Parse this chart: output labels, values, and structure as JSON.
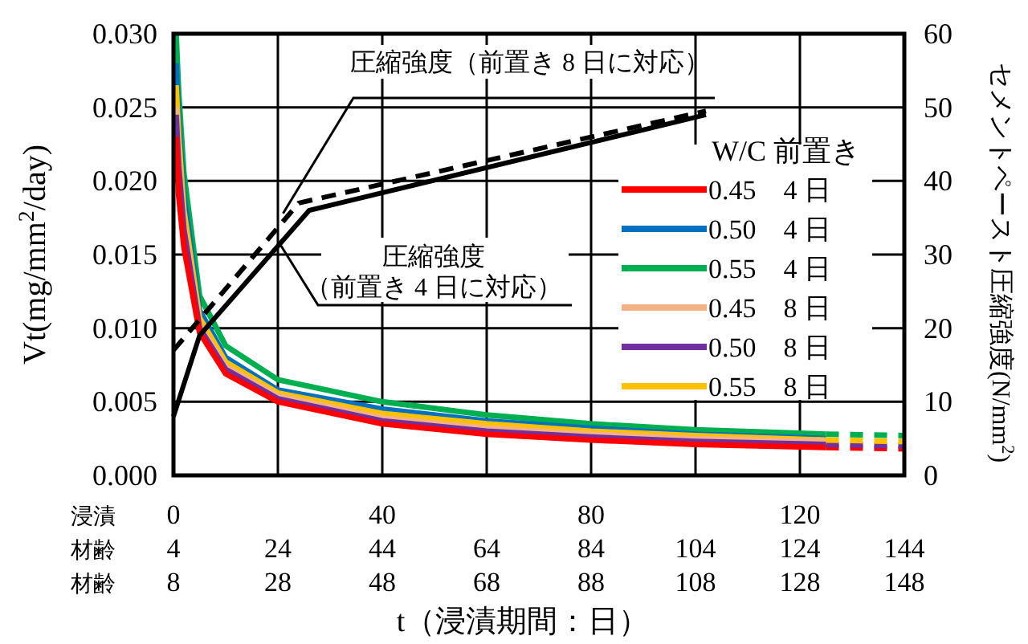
{
  "chart_data": {
    "type": "line",
    "xlabel": "t（浸漬期間：日）",
    "ylabel": "Vt(mg/mm$^{2}$/day)",
    "y2label": "セメントペースト圧縮強度(N/mm$^{2}$)",
    "x2label": "材齢",
    "legend_title": "W/C 前置き",
    "legend": "right",
    "grid": true,
    "xlim": [
      0,
      140
    ],
    "xticks": [
      0,
      40,
      80,
      120
    ],
    "x2lim": [
      4,
      144
    ],
    "x2ticks": [
      4,
      24,
      44,
      64,
      84,
      104,
      124,
      144
    ],
    "ylim": [
      0,
      0.03
    ],
    "yticks": [
      {
        "value": 0,
        "label": "0.000"
      },
      {
        "value": 0.005,
        "label": "0.005"
      },
      {
        "value": 0.01,
        "label": "0.010"
      },
      {
        "value": 0.015,
        "label": "0.015"
      },
      {
        "value": 0.02,
        "label": "0.020"
      },
      {
        "value": 0.025,
        "label": "0.025"
      },
      {
        "value": 0.03,
        "label": "0.030"
      }
    ],
    "y2lim": [
      0,
      60
    ],
    "y2ticks": [
      0,
      10,
      20,
      30,
      40,
      50,
      60
    ],
    "annotations": [
      {
        "text": "圧縮強度（前置き 8 日に対応）",
        "x": 21,
        "y": 0.0178
      },
      {
        "text": "圧縮強度（前置き 4 日に対応）",
        "x": 20.6,
        "y": 0.0156
      },
      "浸漬",
      "材齢",
      "8",
      "28",
      "48",
      "68",
      "88",
      "108",
      "128",
      "148"
    ],
    "series": [
      {
        "name": "0.45　4 日",
        "color": "#ff0000",
        "x": [
          0.5,
          1,
          2,
          5,
          10,
          20,
          40,
          60,
          80,
          100,
          125
        ],
        "values": [
          0.023,
          0.019,
          0.0155,
          0.0097,
          0.0069,
          0.005,
          0.0035,
          0.0028,
          0.0024,
          0.0021,
          0.0019
        ]
      },
      {
        "name": "0.50　4 日",
        "color": "#0070c0",
        "x": [
          0.5,
          1,
          2,
          5,
          10,
          20,
          40,
          60,
          80,
          100,
          125
        ],
        "values": [
          0.028,
          0.024,
          0.019,
          0.0112,
          0.008,
          0.0058,
          0.0045,
          0.0037,
          0.0032,
          0.0028,
          0.0025
        ]
      },
      {
        "name": "0.55　4 日",
        "color": "#00b050",
        "x": [
          0.5,
          1,
          2,
          5,
          10,
          20,
          40,
          60,
          80,
          100,
          125
        ],
        "values": [
          0.03,
          0.026,
          0.0205,
          0.0122,
          0.0088,
          0.0065,
          0.005,
          0.0041,
          0.0035,
          0.0031,
          0.0028
        ]
      },
      {
        "name": "0.45　8 日",
        "color": "#f4b183",
        "x": [
          0.5,
          1,
          2,
          5,
          10,
          20,
          40,
          60,
          80,
          100,
          125
        ],
        "values": [
          0.025,
          0.0215,
          0.017,
          0.0102,
          0.0074,
          0.0054,
          0.0039,
          0.0032,
          0.0028,
          0.0025,
          0.0023
        ]
      },
      {
        "name": "0.50　8 日",
        "color": "#7030a0",
        "x": [
          0.5,
          1,
          2,
          5,
          10,
          20,
          40,
          60,
          80,
          100,
          125
        ],
        "values": [
          0.0245,
          0.021,
          0.0167,
          0.01,
          0.0072,
          0.0052,
          0.0037,
          0.003,
          0.0026,
          0.0023,
          0.0021
        ]
      },
      {
        "name": "0.55　8 日",
        "color": "#ffc000",
        "x": [
          0.5,
          1,
          2,
          5,
          10,
          20,
          40,
          60,
          80,
          100,
          125
        ],
        "values": [
          0.0265,
          0.023,
          0.018,
          0.0107,
          0.0077,
          0.0056,
          0.0042,
          0.0035,
          0.003,
          0.0027,
          0.0024
        ]
      },
      {
        "color": "#ff0000",
        "line_style": "dashed",
        "x": [
          125,
          140
        ],
        "values": [
          0.0019,
          0.0018
        ]
      },
      {
        "color": "#00b050",
        "line_style": "dashed",
        "x": [
          125,
          140
        ],
        "values": [
          0.0028,
          0.0027
        ]
      },
      {
        "color": "#7030a0",
        "line_style": "dashed",
        "x": [
          125,
          140
        ],
        "values": [
          0.0021,
          0.002
        ]
      },
      {
        "color": "#ffc000",
        "line_style": "dashed",
        "x": [
          125,
          140
        ],
        "values": [
          0.0024,
          0.0023
        ]
      },
      {
        "color": "#000000",
        "axis": "y2",
        "x": [
          0,
          5,
          26,
          102
        ],
        "values": [
          8,
          19,
          36,
          49
        ]
      },
      {
        "color": "#000000",
        "axis": "y2",
        "line_style": "dashed",
        "x": [
          0,
          24,
          102
        ],
        "values": [
          17,
          37,
          49.5
        ]
      }
    ]
  }
}
